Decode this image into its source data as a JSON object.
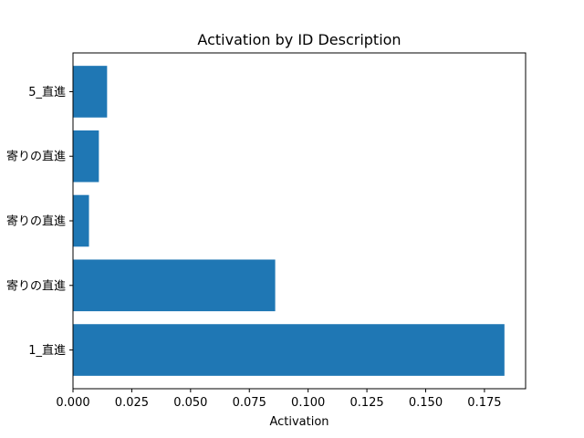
{
  "chart_data": {
    "type": "bar",
    "orientation": "horizontal",
    "title": "Activation by ID Description",
    "xlabel": "Activation",
    "ylabel": "",
    "categories": [
      "1_直進",
      "寄りの直進",
      "寄りの直進",
      "寄りの直進",
      "5_直進"
    ],
    "values": [
      0.1835,
      0.086,
      0.0068,
      0.011,
      0.0145
    ],
    "xlim": [
      0.0,
      0.1925
    ],
    "xticks": [
      "0.000",
      "0.025",
      "0.050",
      "0.075",
      "0.100",
      "0.125",
      "0.150",
      "0.175"
    ],
    "bar_color": "#1f77b4",
    "grid": false,
    "legend": "none"
  }
}
